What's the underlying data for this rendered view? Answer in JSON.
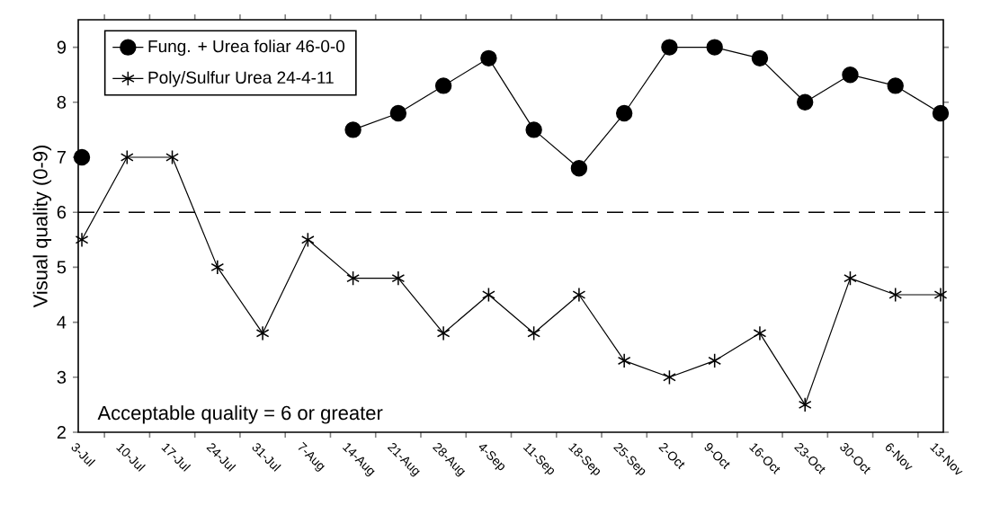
{
  "chart_data": {
    "type": "line",
    "ylabel": "Visual quality (0-9)",
    "categories": [
      "3-Jul",
      "10-Jul",
      "17-Jul",
      "24-Jul",
      "31-Jul",
      "7-Aug",
      "14-Aug",
      "21-Aug",
      "28-Aug",
      "4-Sep",
      "11-Sep",
      "18-Sep",
      "25-Sep",
      "2-Oct",
      "9-Oct",
      "16-Oct",
      "23-Oct",
      "30-Oct",
      "6-Nov",
      "13-Nov"
    ],
    "series": [
      {
        "name": "Fung. + Urea foliar 46-0-0",
        "color": "#000000",
        "marker": "circle",
        "values": [
          7,
          null,
          null,
          null,
          null,
          null,
          7.5,
          7.8,
          8.3,
          8.8,
          7.5,
          6.8,
          7.8,
          9,
          9,
          8.8,
          8,
          8.5,
          8.3,
          7.8
        ]
      },
      {
        "name": "Poly/Sulfur Urea 24-4-11",
        "color": "#000000",
        "marker": "star",
        "values": [
          5.5,
          7,
          7,
          5,
          3.8,
          5.5,
          4.8,
          4.8,
          3.8,
          4.5,
          3.8,
          4.5,
          3.3,
          3,
          3.3,
          3.8,
          2.5,
          4.8,
          4.5,
          4.5
        ]
      }
    ],
    "ylim": [
      2,
      9.5
    ],
    "yticks": [
      2,
      3,
      4,
      5,
      6,
      7,
      8,
      9
    ],
    "ref_lines": [
      {
        "axis": "y",
        "value": 6,
        "color": "#000000",
        "line_style": "dashed"
      }
    ],
    "annotations": [
      "Acceptable quality = 6 or greater"
    ],
    "legend": "top left",
    "grid": false,
    "line_style": "solid"
  }
}
